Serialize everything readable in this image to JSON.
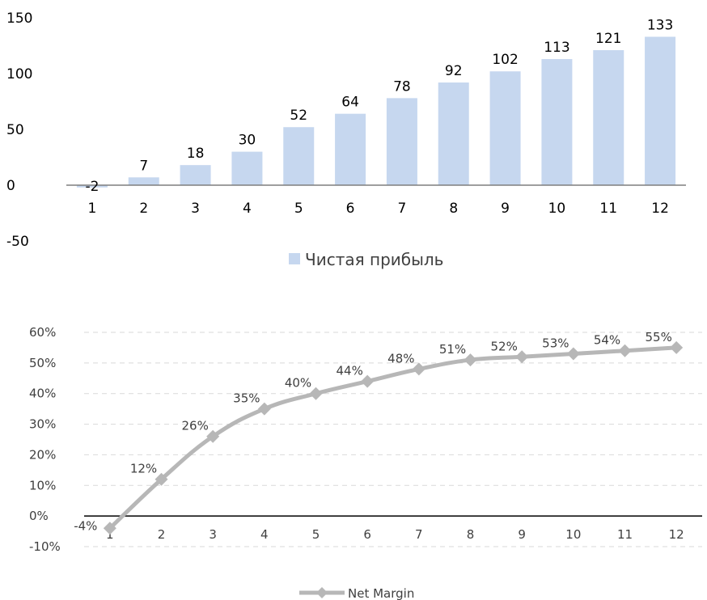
{
  "chart_data": [
    {
      "type": "bar",
      "categories": [
        "1",
        "2",
        "3",
        "4",
        "5",
        "6",
        "7",
        "8",
        "9",
        "10",
        "11",
        "12"
      ],
      "series": [
        {
          "name": "Чистая прибыль",
          "values": [
            -2,
            7,
            18,
            30,
            52,
            64,
            78,
            92,
            102,
            113,
            121,
            133
          ]
        }
      ],
      "ylim": [
        -50,
        150
      ],
      "yticks": [
        "150",
        "100",
        "50",
        "0",
        "-50"
      ],
      "grid": false,
      "legend": "bottom",
      "colors": {
        "bar": "#c6d7ef"
      }
    },
    {
      "type": "line",
      "categories": [
        "1",
        "2",
        "3",
        "4",
        "5",
        "6",
        "7",
        "8",
        "9",
        "10",
        "11",
        "12"
      ],
      "series": [
        {
          "name": "Net Margin",
          "values": [
            -4,
            12,
            26,
            35,
            40,
            44,
            48,
            51,
            52,
            53,
            54,
            55
          ],
          "labels": [
            "-4%",
            "12%",
            "26%",
            "35%",
            "40%",
            "44%",
            "48%",
            "51%",
            "52%",
            "53%",
            "54%",
            "55%"
          ]
        }
      ],
      "ylim": [
        -10,
        60
      ],
      "yticks": [
        "60%",
        "50%",
        "40%",
        "30%",
        "20%",
        "10%",
        "0%",
        "-10%"
      ],
      "grid": true,
      "legend": "bottom",
      "colors": {
        "line": "#b7b7b7",
        "marker": "#b7b7b7"
      }
    }
  ]
}
